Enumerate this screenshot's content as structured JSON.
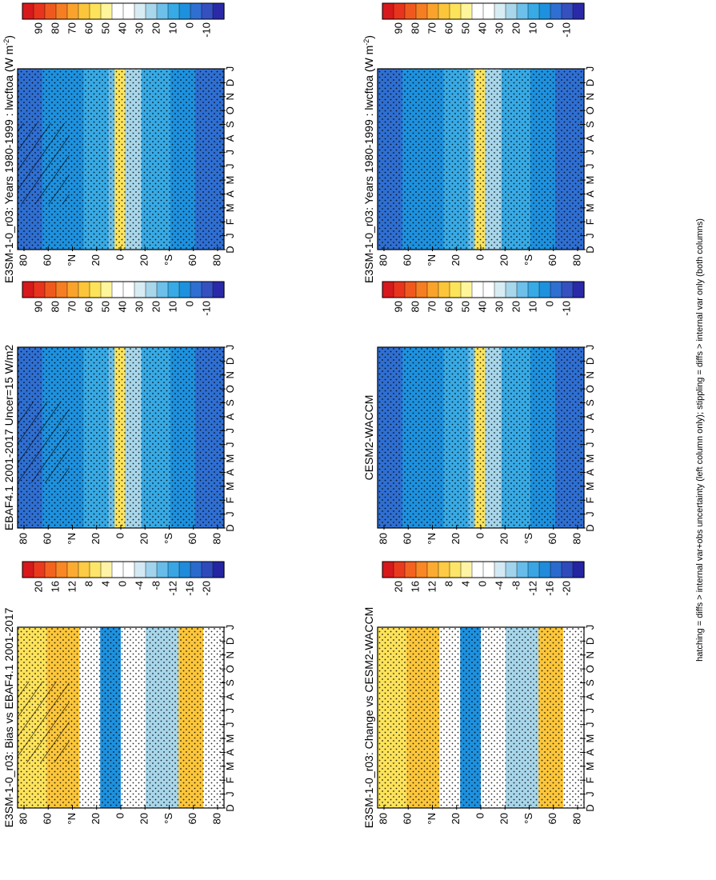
{
  "footer": "hatching = diffs > internal var+obs uncertainty (left column only); stippling = diffs > internal var only (both columns)",
  "chart_data": [
    {
      "type": "heatmap",
      "title": "E3SM-1-0_r03: Years 1980-1999 : lwcftoa (W m",
      "title_sup": "-2",
      "title_close": ")",
      "months": [
        "D",
        "J",
        "F",
        "M",
        "A",
        "M",
        "J",
        "J",
        "A",
        "S",
        "O",
        "N",
        "D",
        "J"
      ],
      "lat_labels": [
        "80",
        "60",
        "°N",
        "20",
        "0",
        "20",
        "°S",
        "60",
        "80"
      ],
      "colorbar": [
        "90",
        "80",
        "70",
        "60",
        "50",
        "40",
        "30",
        "20",
        "10",
        "0",
        "-10"
      ],
      "palette": "abs",
      "hatch": true
    },
    {
      "type": "heatmap",
      "title": "EBAF4.1 2001-2017 Uncer=15 W/m2",
      "months": [
        "D",
        "J",
        "F",
        "M",
        "A",
        "M",
        "J",
        "J",
        "A",
        "S",
        "O",
        "N",
        "D",
        "J"
      ],
      "lat_labels": [
        "80",
        "60",
        "°N",
        "20",
        "0",
        "20",
        "°S",
        "60",
        "80"
      ],
      "colorbar": [
        "90",
        "80",
        "70",
        "60",
        "50",
        "40",
        "30",
        "20",
        "10",
        "0",
        "-10"
      ],
      "palette": "abs",
      "hatch": true
    },
    {
      "type": "heatmap",
      "title": "E3SM-1-0_r03: Bias vs EBAF4.1 2001-2017",
      "months": [
        "D",
        "J",
        "F",
        "M",
        "A",
        "M",
        "J",
        "J",
        "A",
        "S",
        "O",
        "N",
        "D",
        "J"
      ],
      "lat_labels": [
        "80",
        "60",
        "°N",
        "20",
        "0",
        "20",
        "°S",
        "60",
        "80"
      ],
      "colorbar": [
        "20",
        "16",
        "12",
        "8",
        "4",
        "0",
        "-4",
        "-8",
        "-12",
        "-16",
        "-20"
      ],
      "palette": "diff",
      "hatch": true
    },
    {
      "type": "heatmap",
      "title": "E3SM-1-0_r03: Years 1980-1999 : lwcftoa (W m",
      "title_sup": "-2",
      "title_close": ")",
      "months": [
        "D",
        "J",
        "F",
        "M",
        "A",
        "M",
        "J",
        "J",
        "A",
        "S",
        "O",
        "N",
        "D",
        "J"
      ],
      "lat_labels": [
        "80",
        "60",
        "°N",
        "20",
        "0",
        "20",
        "°S",
        "60",
        "80"
      ],
      "colorbar": [
        "90",
        "80",
        "70",
        "60",
        "50",
        "40",
        "30",
        "20",
        "10",
        "0",
        "-10"
      ],
      "palette": "abs",
      "hatch": false
    },
    {
      "type": "heatmap",
      "title": "CESM2-WACCM",
      "months": [
        "D",
        "J",
        "F",
        "M",
        "A",
        "M",
        "J",
        "J",
        "A",
        "S",
        "O",
        "N",
        "D",
        "J"
      ],
      "lat_labels": [
        "80",
        "60",
        "°N",
        "20",
        "0",
        "20",
        "°S",
        "60",
        "80"
      ],
      "colorbar": [
        "90",
        "80",
        "70",
        "60",
        "50",
        "40",
        "30",
        "20",
        "10",
        "0",
        "-10"
      ],
      "palette": "abs",
      "hatch": false
    },
    {
      "type": "heatmap",
      "title": "E3SM-1-0_r03: Change vs CESM2-WACCM",
      "months": [
        "D",
        "J",
        "F",
        "M",
        "A",
        "M",
        "J",
        "J",
        "A",
        "S",
        "O",
        "N",
        "D",
        "J"
      ],
      "lat_labels": [
        "80",
        "60",
        "°N",
        "20",
        "0",
        "20",
        "°S",
        "60",
        "80"
      ],
      "colorbar": [
        "20",
        "16",
        "12",
        "8",
        "4",
        "0",
        "-4",
        "-8",
        "-12",
        "-16",
        "-20"
      ],
      "palette": "diff",
      "hatch": false
    }
  ]
}
